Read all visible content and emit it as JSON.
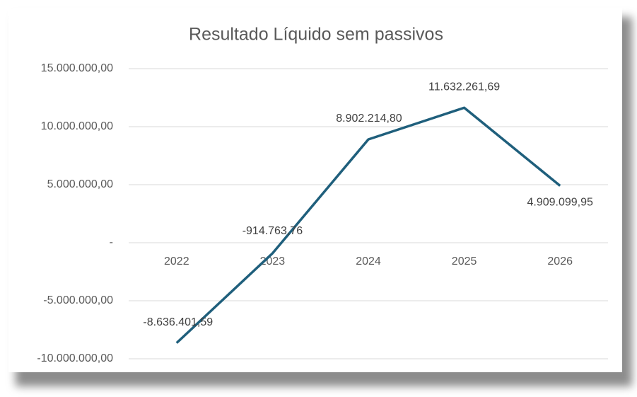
{
  "chart_data": {
    "type": "line",
    "title": "Resultado Líquido sem passivos",
    "categories": [
      "2022",
      "2023",
      "2024",
      "2025",
      "2026"
    ],
    "series": [
      {
        "name": "Resultado Líquido sem passivos",
        "color": "#1f5f7c",
        "values": [
          -8636401.59,
          -914763.76,
          8902214.8,
          11632261.69,
          4909099.95
        ],
        "value_labels": [
          "-8.636.401,59",
          "-914.763,76",
          "8.902.214,80",
          "11.632.261,69",
          "4.909.099,95"
        ]
      }
    ],
    "ylim": [
      -10000000,
      15000000
    ],
    "yticks": [
      {
        "value": -10000000,
        "label": "-10.000.000,00"
      },
      {
        "value": -5000000,
        "label": "-5.000.000,00"
      },
      {
        "value": 0,
        "label": "-"
      },
      {
        "value": 5000000,
        "label": "5.000.000,00"
      },
      {
        "value": 10000000,
        "label": "10.000.000,00"
      },
      {
        "value": 15000000,
        "label": "15.000.000,00"
      }
    ],
    "grid": true
  }
}
